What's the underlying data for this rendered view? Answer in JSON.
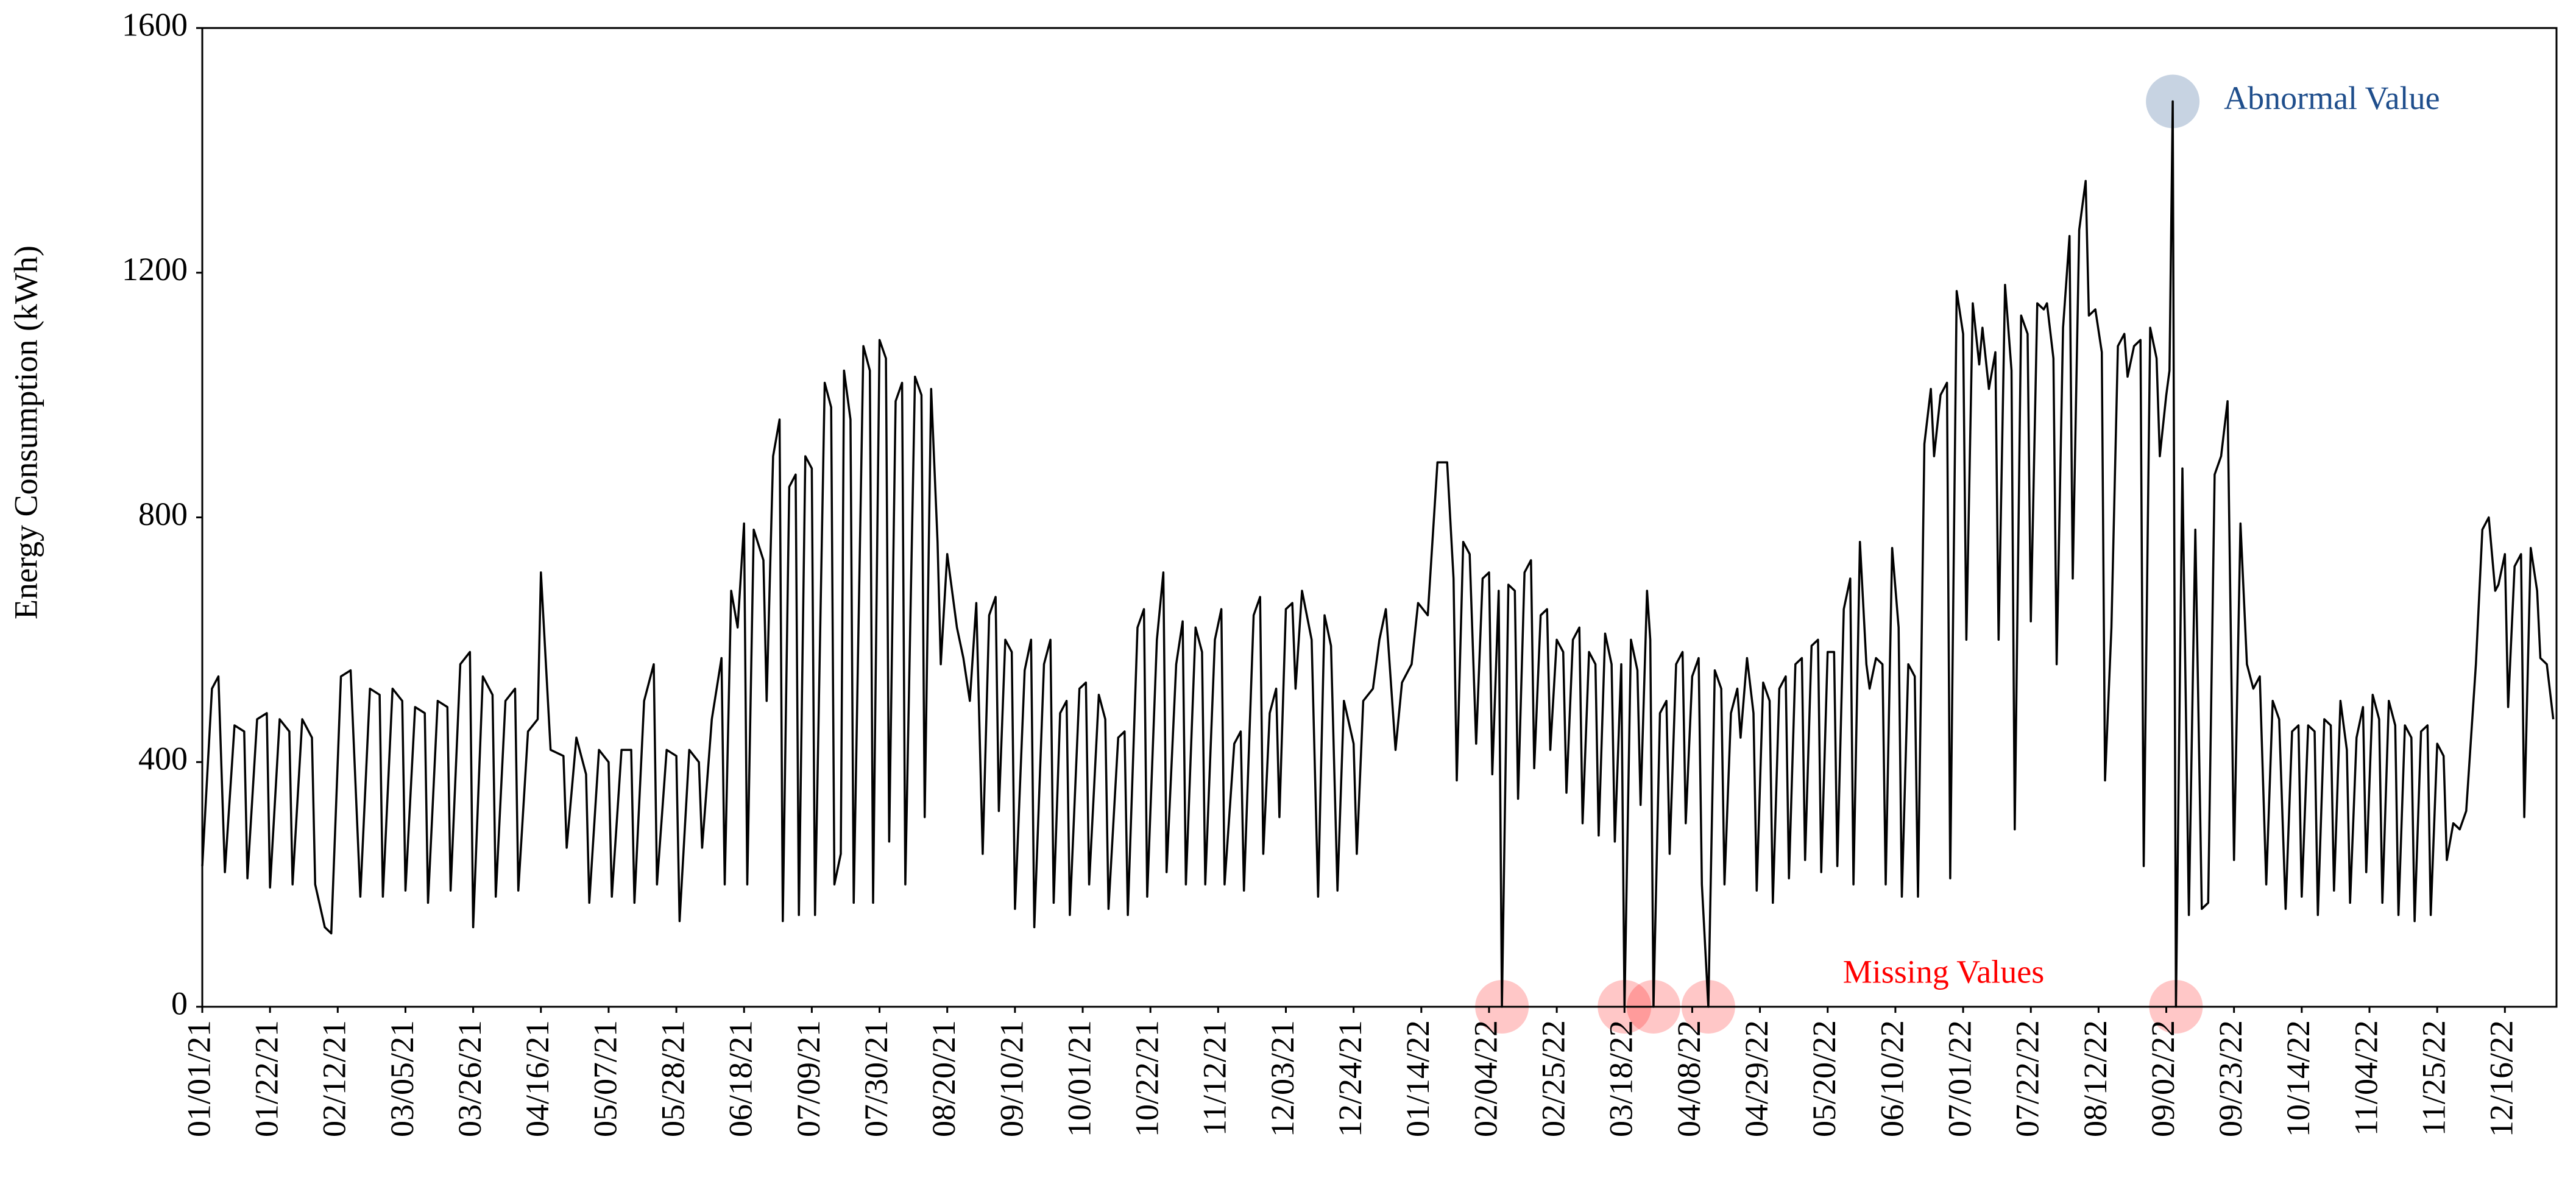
{
  "chart_data": {
    "type": "line",
    "y_label": "Energy Consumption (kWh)",
    "annotations": {
      "abnormal": "Abnormal Value",
      "missing": "Missing Values"
    },
    "abnormal_color": "#1f4e8c",
    "missing_color": "#ff0000",
    "color": "#000000",
    "xlim": [
      0,
      730
    ],
    "ylim": [
      0,
      1600
    ],
    "yticks": [
      0,
      400,
      800,
      1200,
      1600
    ],
    "xticks": [
      {
        "value": 0,
        "label": "01/01/21"
      },
      {
        "value": 21,
        "label": "01/22/21"
      },
      {
        "value": 42,
        "label": "02/12/21"
      },
      {
        "value": 63,
        "label": "03/05/21"
      },
      {
        "value": 84,
        "label": "03/26/21"
      },
      {
        "value": 105,
        "label": "04/16/21"
      },
      {
        "value": 126,
        "label": "05/07/21"
      },
      {
        "value": 147,
        "label": "05/28/21"
      },
      {
        "value": 168,
        "label": "06/18/21"
      },
      {
        "value": 189,
        "label": "07/09/21"
      },
      {
        "value": 210,
        "label": "07/30/21"
      },
      {
        "value": 231,
        "label": "08/20/21"
      },
      {
        "value": 252,
        "label": "09/10/21"
      },
      {
        "value": 273,
        "label": "10/01/21"
      },
      {
        "value": 294,
        "label": "10/22/21"
      },
      {
        "value": 315,
        "label": "11/12/21"
      },
      {
        "value": 336,
        "label": "12/03/21"
      },
      {
        "value": 357,
        "label": "12/24/21"
      },
      {
        "value": 378,
        "label": "01/14/22"
      },
      {
        "value": 399,
        "label": "02/04/22"
      },
      {
        "value": 420,
        "label": "02/25/22"
      },
      {
        "value": 441,
        "label": "03/18/22"
      },
      {
        "value": 462,
        "label": "04/08/22"
      },
      {
        "value": 483,
        "label": "04/29/22"
      },
      {
        "value": 504,
        "label": "05/20/22"
      },
      {
        "value": 525,
        "label": "06/10/22"
      },
      {
        "value": 546,
        "label": "07/01/22"
      },
      {
        "value": 567,
        "label": "07/22/22"
      },
      {
        "value": 588,
        "label": "08/12/22"
      },
      {
        "value": 609,
        "label": "09/02/22"
      },
      {
        "value": 630,
        "label": "09/23/22"
      },
      {
        "value": 651,
        "label": "10/14/22"
      },
      {
        "value": 672,
        "label": "11/04/22"
      },
      {
        "value": 693,
        "label": "11/25/22"
      },
      {
        "value": 714,
        "label": "12/16/22"
      }
    ],
    "x": [
      0,
      3,
      5,
      7,
      10,
      13,
      14,
      17,
      20,
      21,
      24,
      27,
      28,
      31,
      34,
      35,
      38,
      40,
      43,
      46,
      49,
      52,
      55,
      56,
      59,
      62,
      63,
      66,
      69,
      70,
      73,
      76,
      77,
      80,
      83,
      84,
      87,
      90,
      91,
      94,
      97,
      98,
      101,
      104,
      105,
      108,
      112,
      113,
      116,
      119,
      120,
      123,
      126,
      127,
      130,
      133,
      134,
      137,
      140,
      141,
      144,
      147,
      148,
      151,
      154,
      155,
      158,
      161,
      162,
      164,
      166,
      168,
      169,
      171,
      174,
      175,
      177,
      179,
      180,
      182,
      184,
      185,
      187,
      189,
      190,
      193,
      195,
      196,
      198,
      199,
      201,
      202,
      205,
      207,
      208,
      210,
      212,
      213,
      215,
      217,
      218,
      221,
      223,
      224,
      226,
      228,
      229,
      231,
      234,
      236,
      238,
      240,
      242,
      244,
      246,
      247,
      249,
      251,
      252,
      255,
      257,
      258,
      261,
      263,
      264,
      266,
      268,
      269,
      272,
      274,
      275,
      278,
      280,
      281,
      284,
      286,
      287,
      290,
      292,
      293,
      296,
      298,
      299,
      302,
      304,
      305,
      308,
      310,
      311,
      314,
      316,
      317,
      320,
      322,
      323,
      326,
      328,
      329,
      331,
      333,
      334,
      336,
      338,
      339,
      341,
      344,
      346,
      348,
      350,
      352,
      354,
      357,
      358,
      360,
      363,
      365,
      367,
      370,
      372,
      375,
      377,
      380,
      383,
      386,
      388,
      389,
      391,
      393,
      395,
      397,
      399,
      400,
      402,
      403,
      405,
      407,
      408,
      410,
      412,
      413,
      415,
      417,
      418,
      420,
      422,
      423,
      425,
      427,
      428,
      430,
      432,
      433,
      435,
      437,
      438,
      440,
      441,
      443,
      445,
      446,
      448,
      449,
      450,
      452,
      454,
      455,
      457,
      459,
      460,
      462,
      464,
      465,
      467,
      469,
      471,
      472,
      474,
      476,
      477,
      479,
      481,
      482,
      484,
      486,
      487,
      489,
      491,
      492,
      494,
      496,
      497,
      499,
      501,
      502,
      504,
      506,
      507,
      509,
      511,
      512,
      514,
      516,
      517,
      519,
      521,
      522,
      524,
      526,
      527,
      529,
      531,
      532,
      534,
      536,
      537,
      539,
      541,
      542,
      544,
      546,
      547,
      549,
      551,
      552,
      554,
      556,
      557,
      559,
      561,
      562,
      564,
      566,
      567,
      569,
      571,
      572,
      574,
      575,
      577,
      579,
      580,
      582,
      584,
      585,
      587,
      589,
      590,
      592,
      594,
      596,
      597,
      599,
      601,
      602,
      604,
      606,
      607,
      609,
      610,
      611,
      612,
      614,
      616,
      618,
      620,
      622,
      624,
      626,
      628,
      630,
      632,
      634,
      636,
      638,
      640,
      642,
      644,
      646,
      648,
      650,
      651,
      653,
      655,
      656,
      658,
      660,
      661,
      663,
      665,
      666,
      668,
      670,
      671,
      673,
      675,
      676,
      678,
      680,
      681,
      683,
      685,
      686,
      688,
      690,
      691,
      693,
      695,
      696,
      698,
      700,
      702,
      705,
      707,
      709,
      711,
      712,
      714,
      715,
      717,
      719,
      720,
      722,
      724,
      725,
      727,
      729
    ],
    "values": [
      230,
      520,
      540,
      220,
      460,
      450,
      210,
      470,
      480,
      195,
      470,
      450,
      200,
      470,
      440,
      200,
      130,
      120,
      540,
      550,
      180,
      520,
      510,
      180,
      520,
      500,
      190,
      490,
      480,
      170,
      500,
      490,
      190,
      560,
      580,
      130,
      540,
      510,
      180,
      500,
      520,
      190,
      450,
      470,
      710,
      420,
      410,
      260,
      440,
      380,
      170,
      420,
      400,
      180,
      420,
      420,
      170,
      500,
      560,
      200,
      420,
      410,
      140,
      420,
      400,
      260,
      470,
      570,
      200,
      680,
      620,
      790,
      200,
      780,
      730,
      500,
      900,
      960,
      140,
      850,
      870,
      150,
      900,
      880,
      150,
      1020,
      980,
      200,
      250,
      1040,
      960,
      170,
      1080,
      1040,
      170,
      1090,
      1060,
      270,
      990,
      1020,
      200,
      1030,
      1000,
      310,
      1010,
      760,
      560,
      740,
      620,
      570,
      500,
      660,
      250,
      640,
      670,
      320,
      600,
      580,
      160,
      550,
      600,
      130,
      560,
      600,
      170,
      480,
      500,
      150,
      520,
      530,
      200,
      510,
      470,
      160,
      440,
      450,
      150,
      620,
      650,
      180,
      600,
      710,
      220,
      560,
      630,
      200,
      620,
      580,
      200,
      600,
      650,
      200,
      430,
      450,
      190,
      640,
      670,
      250,
      480,
      520,
      310,
      650,
      660,
      520,
      680,
      600,
      180,
      640,
      590,
      190,
      500,
      430,
      250,
      500,
      520,
      600,
      650,
      420,
      530,
      560,
      660,
      640,
      890,
      890,
      700,
      370,
      760,
      740,
      430,
      700,
      710,
      380,
      680,
      0,
      690,
      680,
      340,
      710,
      730,
      390,
      640,
      650,
      420,
      600,
      580,
      350,
      600,
      620,
      300,
      580,
      560,
      280,
      610,
      560,
      270,
      560,
      0,
      600,
      550,
      330,
      680,
      600,
      0,
      480,
      500,
      250,
      560,
      580,
      300,
      540,
      570,
      200,
      0,
      550,
      520,
      200,
      480,
      520,
      440,
      570,
      480,
      190,
      530,
      500,
      170,
      520,
      540,
      210,
      560,
      570,
      240,
      590,
      600,
      220,
      580,
      580,
      230,
      650,
      700,
      200,
      760,
      560,
      520,
      570,
      560,
      200,
      750,
      620,
      180,
      560,
      540,
      180,
      920,
      1010,
      900,
      1000,
      1020,
      210,
      1170,
      1100,
      600,
      1150,
      1050,
      1110,
      1010,
      1070,
      600,
      1180,
      1040,
      290,
      1130,
      1100,
      630,
      1150,
      1140,
      1150,
      1060,
      560,
      1110,
      1260,
      700,
      1270,
      1350,
      1130,
      1140,
      1070,
      370,
      620,
      1080,
      1100,
      1030,
      1080,
      1090,
      230,
      1110,
      1060,
      900,
      1000,
      1040,
      1480,
      0,
      880,
      150,
      780,
      160,
      170,
      870,
      900,
      990,
      240,
      790,
      560,
      520,
      540,
      200,
      500,
      470,
      160,
      450,
      460,
      180,
      460,
      450,
      150,
      470,
      460,
      190,
      500,
      420,
      170,
      440,
      490,
      220,
      510,
      470,
      170,
      500,
      460,
      150,
      460,
      440,
      140,
      450,
      460,
      150,
      430,
      410,
      240,
      300,
      290,
      320,
      560,
      780,
      800,
      680,
      690,
      740,
      490,
      720,
      740,
      310,
      750,
      680,
      570,
      560,
      470
    ]
  }
}
